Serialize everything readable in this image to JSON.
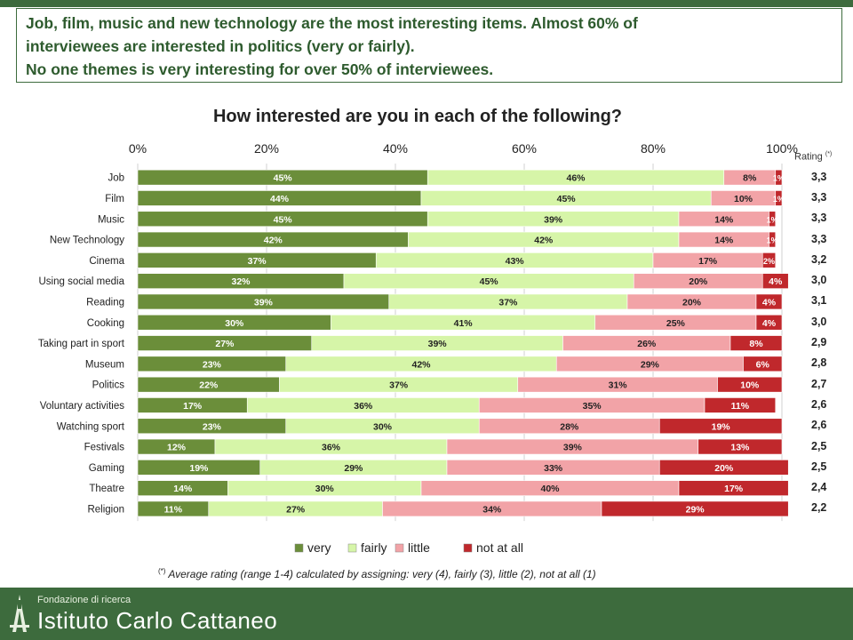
{
  "headline": {
    "line1": "Job, film, music and new technology are the most interesting items. Almost 60% of",
    "line2": "interviewees are interested in politics (very or fairly).",
    "line3": "No one themes is very interesting for over 50% of interviewees."
  },
  "chart_data": {
    "type": "bar",
    "orientation": "horizontal",
    "stacked": "percent",
    "title": "How interested are you in each of the following?",
    "categories": [
      "Job",
      "Film",
      "Music",
      "New Technology",
      "Cinema",
      "Using social media",
      "Reading",
      "Cooking",
      "Taking part in sport",
      "Museum",
      "Politics",
      "Voluntary activities",
      "Watching sport",
      "Festivals",
      "Gaming",
      "Theatre",
      "Religion"
    ],
    "series": [
      {
        "name": "very",
        "color": "#6b8e3a",
        "values": [
          45,
          44,
          45,
          42,
          37,
          32,
          39,
          30,
          27,
          23,
          22,
          17,
          23,
          12,
          19,
          14,
          11
        ]
      },
      {
        "name": "fairly",
        "color": "#d6f5a8",
        "values": [
          46,
          45,
          39,
          42,
          43,
          45,
          37,
          41,
          39,
          42,
          37,
          36,
          30,
          36,
          29,
          30,
          27
        ]
      },
      {
        "name": "little",
        "color": "#f2a3a7",
        "values": [
          8,
          10,
          14,
          14,
          17,
          20,
          20,
          25,
          26,
          29,
          31,
          35,
          28,
          39,
          33,
          40,
          34
        ]
      },
      {
        "name": "not at all",
        "color": "#c0282c",
        "values": [
          1,
          1,
          1,
          1,
          2,
          4,
          4,
          4,
          8,
          6,
          10,
          11,
          19,
          13,
          20,
          17,
          29
        ]
      }
    ],
    "xaxis": {
      "ticks": [
        "0%",
        "20%",
        "40%",
        "60%",
        "80%",
        "100%"
      ],
      "range": [
        0,
        100
      ]
    },
    "legend_position": "bottom",
    "ratings": {
      "header": "Rating",
      "header_mark": "(*)",
      "values": [
        "3,3",
        "3,3",
        "3,3",
        "3,3",
        "3,2",
        "3,0",
        "3,1",
        "3,0",
        "2,9",
        "2,8",
        "2,7",
        "2,6",
        "2,6",
        "2,5",
        "2,5",
        "2,4",
        "2,2"
      ]
    },
    "note": {
      "mark": "(*)",
      "text": " Average rating (range 1-4) calculated by assigning: very (4), fairly (3), little (2), not at all (1)"
    }
  },
  "footer": {
    "subtitle": "Fondazione di ricerca",
    "name": "Istituto Carlo Cattaneo"
  }
}
